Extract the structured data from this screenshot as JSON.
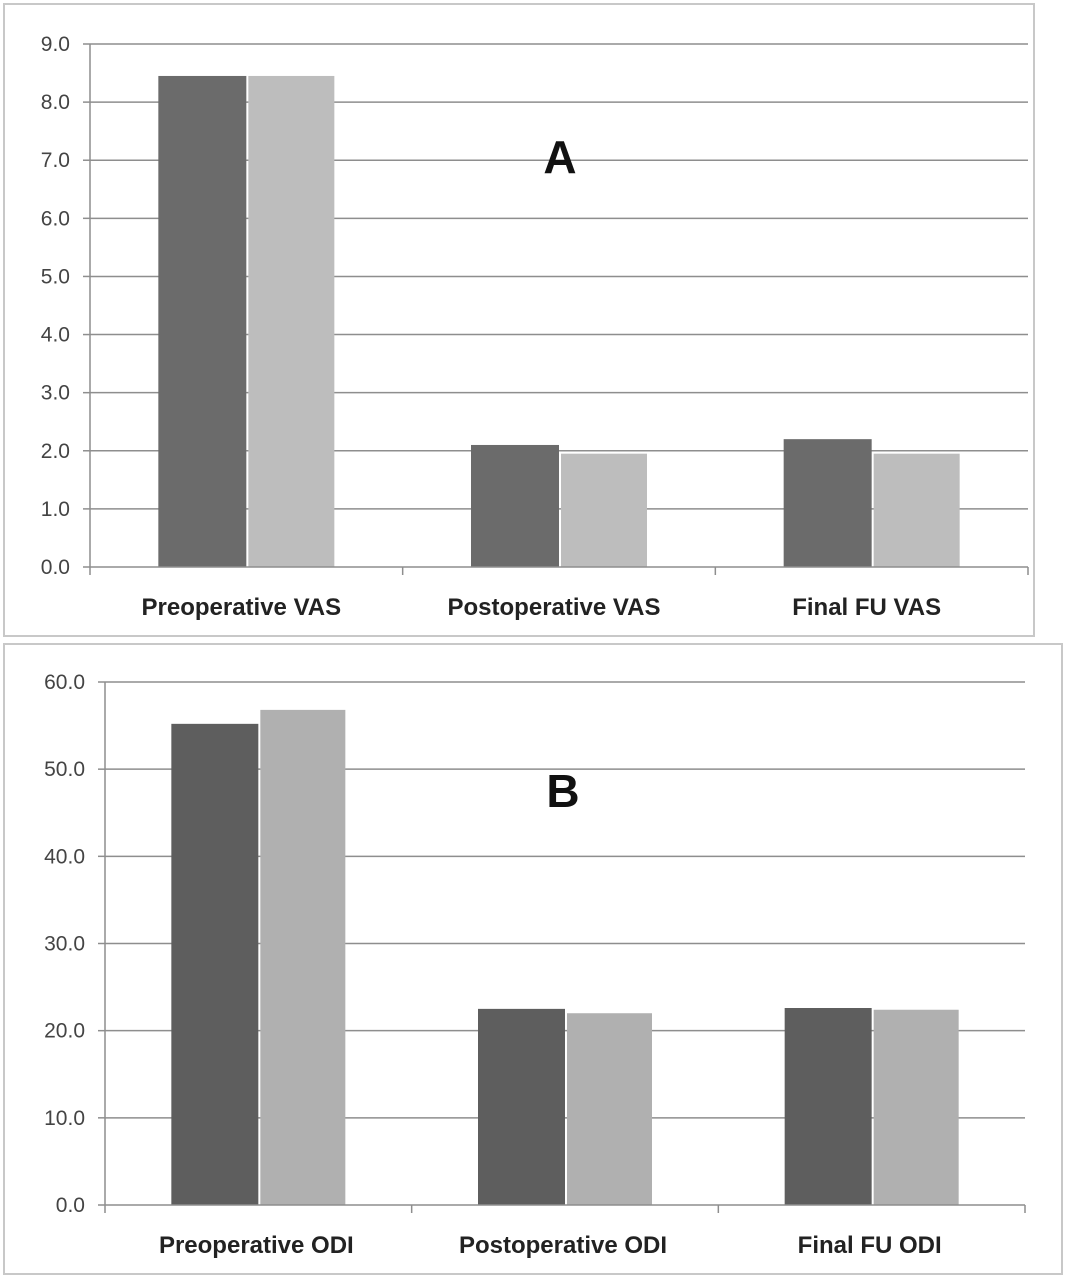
{
  "chart_data": [
    {
      "type": "bar",
      "panel_label": "A",
      "categories": [
        "Preoperative VAS",
        "Postoperative VAS",
        "Final FU VAS"
      ],
      "series": [
        {
          "values": [
            8.45,
            2.1,
            2.2
          ],
          "color": "#6b6b6b"
        },
        {
          "values": [
            8.45,
            1.95,
            1.95
          ],
          "color": "#bdbdbd"
        }
      ],
      "ylim": [
        0,
        9
      ],
      "yticks": [
        "0.0",
        "1.0",
        "2.0",
        "3.0",
        "4.0",
        "5.0",
        "6.0",
        "7.0",
        "8.0",
        "9.0"
      ],
      "grid": true,
      "xlabel": "",
      "ylabel": ""
    },
    {
      "type": "bar",
      "panel_label": "B",
      "categories": [
        "Preoperative ODI",
        "Postoperative ODI",
        "Final FU ODI"
      ],
      "series": [
        {
          "values": [
            55.2,
            22.5,
            22.6
          ],
          "color": "#5e5e5e"
        },
        {
          "values": [
            56.8,
            22.0,
            22.4
          ],
          "color": "#b0b0b0"
        }
      ],
      "ylim": [
        0,
        60
      ],
      "yticks": [
        "0.0",
        "10.0",
        "20.0",
        "30.0",
        "40.0",
        "50.0",
        "60.0"
      ],
      "grid": true,
      "xlabel": "",
      "ylabel": ""
    }
  ]
}
